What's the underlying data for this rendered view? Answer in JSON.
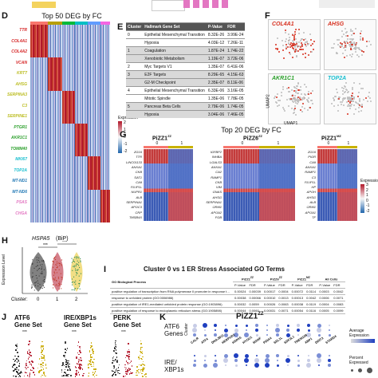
{
  "panel_letters": {
    "d": "D",
    "e": "E",
    "f": "F",
    "g": "G",
    "h": "H",
    "i": "I",
    "j": "J",
    "k": "K"
  },
  "panel_d": {
    "title": "Top 50 DEG by FC",
    "cluster_ticks": [
      "0",
      "1",
      "2",
      "3",
      "4",
      "5"
    ],
    "genes": [
      "TTR",
      "COL4A1",
      "COL4A2",
      "VCAN",
      "KRT7",
      "AHSG",
      "SERPINA3",
      "C3",
      "SERPINE1",
      "PTGR1",
      "AKR1C1",
      "TOMM40",
      "MKI67",
      "TOP2A",
      "MT-ND1",
      "MT-ND6",
      "PSAS",
      "CHGA"
    ],
    "gene_colors": [
      "#d62728",
      "#d62728",
      "#d62728",
      "#d62728",
      "#bcbd22",
      "#bcbd22",
      "#bcbd22",
      "#bcbd22",
      "#bcbd22",
      "#2ca02c",
      "#2ca02c",
      "#2ca02c",
      "#17becf",
      "#17becf",
      "#1f77b4",
      "#1f77b4",
      "#e377c2",
      "#e377c2"
    ],
    "legend_title": "Expression",
    "legend_ticks": [
      "2",
      "1",
      "0",
      "-1",
      "-2"
    ]
  },
  "panel_e": {
    "title": "Hallmark Gene Set",
    "headers": [
      "Cluster",
      "Hallmark Gene Set",
      "P-Value",
      "FDR"
    ],
    "rows": [
      [
        "0",
        "Epithelial Mesenchymal Transition",
        "8.32E-26",
        "3.99E-24"
      ],
      [
        "",
        "Hypoxia",
        "4.03E-12",
        "7.26E-11"
      ],
      [
        "1",
        "Coagulation",
        "1.87E-24",
        "1.74E-22"
      ],
      [
        "",
        "Xenobiotic Metabolism",
        "1.19E-07",
        "3.72E-06"
      ],
      [
        "2",
        "Myc Targets V1",
        "1.35E-07",
        "6.41E-06"
      ],
      [
        "3",
        "E2F Targets",
        "8.29E-65",
        "4.15E-63"
      ],
      [
        "",
        "G2-M Checkpoint",
        "2.35E-07",
        "8.11E-06"
      ],
      [
        "4",
        "Epithelial Mesenchymal Transition",
        "6.33E-06",
        "3.16E-05"
      ],
      [
        "",
        "Mitotic Spindle",
        "1.35E-06",
        "7.78E-05"
      ],
      [
        "5",
        "Pancreas Beta Cells",
        "2.79E-06",
        "1.74E-05"
      ],
      [
        "",
        "Hypoxia",
        "3.04E-06",
        "7.46E-05"
      ]
    ]
  },
  "panel_f": {
    "labels": [
      "COL4A1",
      "AHSG",
      "AKR1C1",
      "TOP2A"
    ],
    "axis_x": "UMAP1",
    "axis_y": "UMAP2"
  },
  "panel_g": {
    "title": "Top 20 DEG by FC",
    "groups": [
      {
        "name": "PiZZ1",
        "sup": "ZZ",
        "ticks": [
          "0",
          "1"
        ]
      },
      {
        "name": "PiZZ6",
        "sup": "ZZ",
        "ticks": [
          "0",
          "1"
        ]
      },
      {
        "name": "PiZZ1",
        "sup": "MZ",
        "ticks": [
          "0",
          "1"
        ]
      }
    ],
    "genes_left": [
      "ZG16",
      "TTR",
      "LINC01133",
      "ANXA1",
      "CKB",
      "SAT1",
      "CA9",
      "FILIP1L",
      "NUPR1",
      "ALB",
      "SERPINA1",
      "APOC3",
      "CRP",
      "TMSB4X"
    ],
    "genes_mid": [
      "IGFBP2",
      "INHBA",
      "LGALS3",
      "ANXA1",
      "CA2",
      "RAMP1",
      "CKB",
      "VIM",
      "GNAS",
      "AHSG",
      "SERPINA1",
      "ORM1",
      "APOA2",
      "FGB"
    ],
    "genes_right": [
      "ZG16",
      "PIGR",
      "CA9",
      "ANXA1",
      "RAMP1",
      "C3",
      "FILIP1L",
      "HP",
      "APOH",
      "AHSG",
      "ALB",
      "ORM1",
      "APOA1",
      "TF"
    ],
    "legend_title": "Expression",
    "legend_ticks": [
      "3",
      "2",
      "1",
      "0",
      "-1",
      "-2"
    ]
  },
  "panel_h": {
    "gene": "HSPA5",
    "gene_note": "(BiP)",
    "ylabel": "Expression Level",
    "xlabel": "Cluster:",
    "x_ticks": [
      "0",
      "1",
      "2"
    ],
    "sig": [
      "***",
      "***"
    ]
  },
  "panel_i": {
    "title": "Cluster 0 vs 1 ER Stress Associated GO Terms",
    "col_process": "GO Biological Process",
    "groups": [
      "PiZZ1",
      "PiZZ6",
      "PiZZ1",
      "All Cells"
    ],
    "group_sups": [
      "ZZ",
      "ZZ",
      "MZ",
      ""
    ],
    "subheaders": [
      "P-Value",
      "FDR"
    ],
    "rows": [
      {
        "term": "positive regulation of transcription from RNA polymerase II promoter in response to endoplasmic reticulum stress",
        "vals": [
          "0.00024",
          "0.00039",
          "0.00017",
          "0.0004",
          "0.00072",
          "0.0114",
          "0.0003",
          "0.0042"
        ]
      },
      {
        "term": "response to unfolded protein (GO:0006986)",
        "vals": [
          "0.00038",
          "0.00066",
          "0.00010",
          "0.0013",
          "0.00013",
          "0.0042",
          "0.0006",
          "0.0071"
        ]
      },
      {
        "term": "positive regulation of IRE1-mediated unfolded protein response (GO:1903896)",
        "vals": [
          "0.00032",
          "0.0059",
          "0.00026",
          "0.0063",
          "0.00038",
          "0.0119",
          "0.0004",
          "0.0083"
        ]
      },
      {
        "term": "positive regulation of response to endoplasmic reticulum stress (GO:1905898)",
        "vals": [
          "0.00044",
          "0.0060",
          "0.00031",
          "0.0071",
          "0.00054",
          "0.0116",
          "0.0005",
          "0.0099"
        ]
      }
    ]
  },
  "panel_j": {
    "sets": [
      {
        "line1": "ATF6",
        "line2": "Gene Set",
        "sig": "***"
      },
      {
        "line1": "IRE/XBP1s",
        "line2": "Gene Set",
        "sig": "***"
      },
      {
        "line1": "PERK",
        "line2": "Gene Set",
        "sig": "***"
      }
    ]
  },
  "panel_k": {
    "title": "PiZZ1",
    "title_sup": "ZZ",
    "row1_label_1": "ATF6",
    "row1_label_2": "Genes",
    "row2_label_1": "IRE/",
    "row2_label_2": "XBP1s",
    "cluster_axis": "Cluster",
    "genes": [
      "CALR",
      "ATF4",
      "DNAJB11",
      "HERPUD1",
      "HSPA5",
      "HYOU1",
      "MANF",
      "PDIA4",
      "SEL1L",
      "SDF2L1",
      "TMEM108",
      "XBP1",
      "DDIT3",
      "STARD4"
    ],
    "legend_avg": "Average Expression",
    "legend_pct": "Percent Expressed"
  },
  "colors": {
    "heat_hi": "#b2182b",
    "heat_mid": "#f7f7f7",
    "heat_lo": "#2166ac",
    "clusters": [
      "#f8766d",
      "#b79f00",
      "#00ba38",
      "#00bfc4",
      "#619cff",
      "#f564e3"
    ],
    "violin": "#2e8b57",
    "violin_dark": "#1a1a1a"
  }
}
